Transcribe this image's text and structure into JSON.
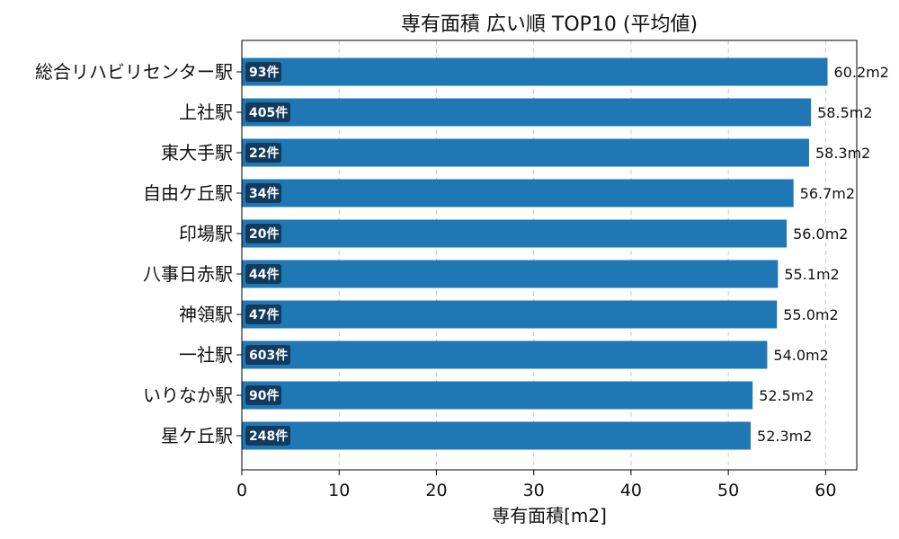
{
  "chart_data": {
    "type": "bar",
    "orientation": "horizontal",
    "title": "専有面積 広い順 TOP10 (平均値)",
    "xlabel": "専有面積[m2]",
    "ylabel": "",
    "xlim": [
      0,
      63.2
    ],
    "xticks": [
      "0",
      "10",
      "20",
      "30",
      "40",
      "50",
      "60"
    ],
    "grid": "vertical dashed",
    "categories": [
      "総合リハビリセンター駅",
      "上社駅",
      "東大手駅",
      "自由ケ丘駅",
      "印場駅",
      "八事日赤駅",
      "神領駅",
      "一社駅",
      "いりなか駅",
      "星ケ丘駅"
    ],
    "values": [
      60.2,
      58.5,
      58.3,
      56.7,
      56.0,
      55.1,
      55.0,
      54.0,
      52.5,
      52.3
    ],
    "value_labels": [
      "60.2m2",
      "58.5m2",
      "58.3m2",
      "56.7m2",
      "56.0m2",
      "55.1m2",
      "55.0m2",
      "54.0m2",
      "52.5m2",
      "52.3m2"
    ],
    "count_labels": [
      "93件",
      "405件",
      "22件",
      "34件",
      "20件",
      "44件",
      "47件",
      "603件",
      "90件",
      "248件"
    ],
    "colors": {
      "bar": "#1f77b4",
      "badge": "#123a5c"
    }
  }
}
